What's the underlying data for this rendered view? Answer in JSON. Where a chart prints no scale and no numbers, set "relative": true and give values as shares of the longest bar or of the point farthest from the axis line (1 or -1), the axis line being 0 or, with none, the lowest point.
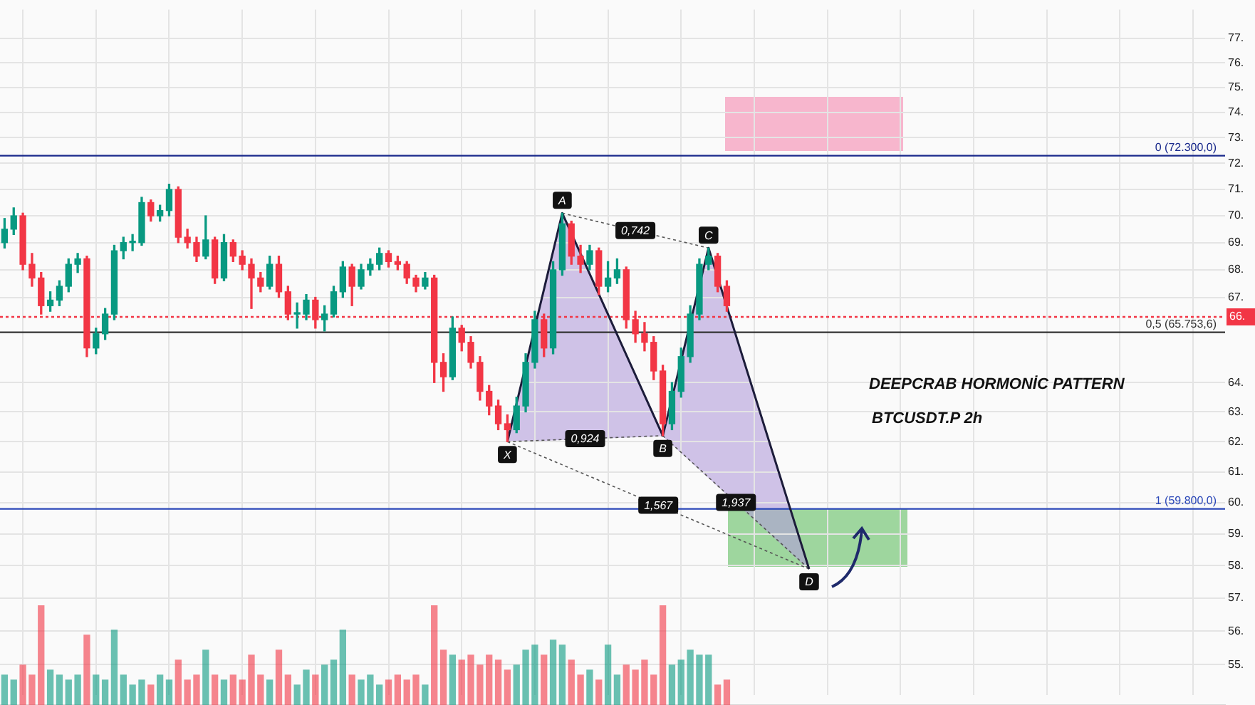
{
  "chart_data": [
    {
      "type": "candlestick",
      "title": "DEEPCRAB HORMONİC PATTERN",
      "subtitle": "BTCUSDT.P 2h",
      "categories": [
        null,
        null,
        null,
        null,
        null,
        null,
        null,
        null,
        null,
        null,
        null,
        null,
        null,
        null,
        null,
        null,
        null,
        null,
        null,
        null,
        null,
        null,
        null,
        null,
        null,
        null,
        null,
        null,
        null,
        null,
        null,
        null,
        null,
        null,
        null,
        null,
        null,
        null,
        null,
        null,
        null,
        null,
        null,
        null,
        null,
        null,
        null,
        null,
        null,
        null,
        null,
        null,
        null,
        null,
        null,
        null,
        null,
        null,
        null,
        null,
        null,
        null,
        null,
        null,
        null,
        null,
        null,
        null,
        null,
        null,
        null,
        null,
        null,
        null,
        null,
        null,
        null,
        null,
        null,
        null,
        null,
        null,
        null,
        null,
        null,
        null,
        null,
        null,
        null,
        null,
        null,
        null,
        null,
        null,
        null,
        null,
        null,
        null,
        null,
        null,
        null,
        null,
        null,
        null,
        null,
        null,
        null,
        null,
        null,
        null,
        null,
        null,
        null,
        null,
        null,
        null,
        null,
        null,
        null,
        null,
        null,
        null,
        null,
        null,
        null,
        null,
        null,
        null,
        null,
        null,
        null,
        null,
        null,
        null
      ],
      "ohlc": [
        [
          69.0,
          69.9,
          68.8,
          69.5
        ],
        [
          69.5,
          70.3,
          69.3,
          70.0
        ],
        [
          70.0,
          70.1,
          68.0,
          68.2
        ],
        [
          68.2,
          68.6,
          67.4,
          67.7
        ],
        [
          67.7,
          67.9,
          66.4,
          66.7
        ],
        [
          66.7,
          67.2,
          66.5,
          66.9
        ],
        [
          66.9,
          67.6,
          66.7,
          67.4
        ],
        [
          67.4,
          68.4,
          67.2,
          68.2
        ],
        [
          68.2,
          68.6,
          67.9,
          68.4
        ],
        [
          68.4,
          68.5,
          64.9,
          65.2
        ],
        [
          65.2,
          65.9,
          65.0,
          65.7
        ],
        [
          65.7,
          66.6,
          65.5,
          66.4
        ],
        [
          66.4,
          68.9,
          66.2,
          68.7
        ],
        [
          68.7,
          69.2,
          68.4,
          69.0
        ],
        [
          69.0,
          69.3,
          68.7,
          69.0
        ],
        [
          69.0,
          70.7,
          68.9,
          70.5
        ],
        [
          70.5,
          70.6,
          69.8,
          70.0
        ],
        [
          70.0,
          70.4,
          69.8,
          70.2
        ],
        [
          70.2,
          71.2,
          70.0,
          71.0
        ],
        [
          71.0,
          71.1,
          69.0,
          69.2
        ],
        [
          69.2,
          69.5,
          68.8,
          69.0
        ],
        [
          69.0,
          69.2,
          68.3,
          68.5
        ],
        [
          68.5,
          70.0,
          68.4,
          69.1
        ],
        [
          69.1,
          69.2,
          67.5,
          67.7
        ],
        [
          67.7,
          69.3,
          67.6,
          69.0
        ],
        [
          69.0,
          69.1,
          68.3,
          68.5
        ],
        [
          68.5,
          68.7,
          68.0,
          68.2
        ],
        [
          68.2,
          68.4,
          66.6,
          67.7
        ],
        [
          67.7,
          67.9,
          67.2,
          67.4
        ],
        [
          67.4,
          68.5,
          67.3,
          68.2
        ],
        [
          68.2,
          68.5,
          67.0,
          67.2
        ],
        [
          67.2,
          67.4,
          66.2,
          66.4
        ],
        [
          66.4,
          66.8,
          65.9,
          66.4
        ],
        [
          66.4,
          67.1,
          66.2,
          66.9
        ],
        [
          66.9,
          67.0,
          65.9,
          66.2
        ],
        [
          66.2,
          66.7,
          65.8,
          66.4
        ],
        [
          66.4,
          67.4,
          66.3,
          67.2
        ],
        [
          67.2,
          68.3,
          67.0,
          68.1
        ],
        [
          68.1,
          68.2,
          66.7,
          67.4
        ],
        [
          67.4,
          68.2,
          67.3,
          68.0
        ],
        [
          68.0,
          68.4,
          67.8,
          68.2
        ],
        [
          68.2,
          68.8,
          68.0,
          68.6
        ],
        [
          68.6,
          68.7,
          68.1,
          68.3
        ],
        [
          68.3,
          68.5,
          68.0,
          68.2
        ],
        [
          68.2,
          68.3,
          67.5,
          67.7
        ],
        [
          67.7,
          67.8,
          67.2,
          67.4
        ],
        [
          67.4,
          67.9,
          67.3,
          67.7
        ],
        [
          67.7,
          67.8,
          64.0,
          64.7
        ],
        [
          64.7,
          65.0,
          63.7,
          64.2
        ],
        [
          64.2,
          66.3,
          64.1,
          65.9
        ],
        [
          65.9,
          66.0,
          65.1,
          65.4
        ],
        [
          65.4,
          65.6,
          64.5,
          64.7
        ],
        [
          64.7,
          64.9,
          63.4,
          63.7
        ],
        [
          63.7,
          63.9,
          62.9,
          63.2
        ],
        [
          63.2,
          63.4,
          62.4,
          62.6
        ],
        [
          62.6,
          62.9,
          62.0,
          62.4
        ],
        [
          62.4,
          63.5,
          62.3,
          63.2
        ],
        [
          63.2,
          65.0,
          63.0,
          64.7
        ],
        [
          64.7,
          66.5,
          64.5,
          66.2
        ],
        [
          66.2,
          66.4,
          64.9,
          65.2
        ],
        [
          65.2,
          68.3,
          65.0,
          68.0
        ],
        [
          68.0,
          70.1,
          67.8,
          69.7
        ],
        [
          69.7,
          69.8,
          68.2,
          68.5
        ],
        [
          68.5,
          68.9,
          67.9,
          68.2
        ],
        [
          68.2,
          68.9,
          68.0,
          68.7
        ],
        [
          68.7,
          68.8,
          67.1,
          67.4
        ],
        [
          67.4,
          68.3,
          67.2,
          67.7
        ],
        [
          67.7,
          68.4,
          67.5,
          68.0
        ],
        [
          68.0,
          68.1,
          65.9,
          66.2
        ],
        [
          66.2,
          66.5,
          65.4,
          65.7
        ],
        [
          65.7,
          66.1,
          65.1,
          65.4
        ],
        [
          65.4,
          65.6,
          64.1,
          64.4
        ],
        [
          64.4,
          64.6,
          62.2,
          62.6
        ],
        [
          62.6,
          64.0,
          62.4,
          63.7
        ],
        [
          63.7,
          65.2,
          63.5,
          64.9
        ],
        [
          64.9,
          66.7,
          64.7,
          66.4
        ],
        [
          66.4,
          68.4,
          66.2,
          68.2
        ],
        [
          68.2,
          68.8,
          68.0,
          68.5
        ],
        [
          68.5,
          68.6,
          67.2,
          67.4
        ],
        [
          67.4,
          67.6,
          66.5,
          66.7
        ],
        null,
        null,
        null,
        null,
        null,
        null,
        null,
        null,
        null,
        null,
        null,
        null,
        null,
        null,
        null,
        null,
        null,
        null,
        null,
        null,
        null,
        null,
        null,
        null,
        null,
        null,
        null,
        null,
        null,
        null,
        null,
        null,
        null,
        null,
        null,
        null,
        null,
        null,
        null,
        null,
        null,
        null,
        null,
        null,
        null,
        null,
        null,
        null,
        null,
        null,
        null,
        null,
        null,
        null
      ],
      "colors": [
        "#089981",
        "#089981",
        "#f23645",
        "#f23645",
        "#f23645",
        "#089981",
        "#089981",
        "#089981",
        "#089981",
        "#f23645",
        "#089981",
        "#089981",
        "#089981",
        "#089981",
        "#089981",
        "#089981",
        "#f23645",
        "#089981",
        "#089981",
        "#f23645",
        "#f23645",
        "#f23645",
        "#089981",
        "#f23645",
        "#089981",
        "#f23645",
        "#f23645",
        "#f23645",
        "#f23645",
        "#089981",
        "#f23645",
        "#f23645",
        "#089981",
        "#089981",
        "#f23645",
        "#089981",
        "#089981",
        "#089981",
        "#f23645",
        "#089981",
        "#089981",
        "#089981",
        "#f23645",
        "#f23645",
        "#f23645",
        "#f23645",
        "#089981",
        "#f23645",
        "#f23645",
        "#089981",
        "#f23645",
        "#f23645",
        "#f23645",
        "#f23645",
        "#f23645",
        "#f23645",
        "#089981",
        "#089981",
        "#089981",
        "#f23645",
        "#089981",
        "#089981",
        "#f23645",
        "#f23645",
        "#089981",
        "#f23645",
        "#089981",
        "#089981",
        "#f23645",
        "#f23645",
        "#f23645",
        "#f23645",
        "#f23645",
        "#089981",
        "#089981",
        "#089981",
        "#089981",
        "#089981",
        "#f23645",
        "#f23645",
        null,
        null,
        null,
        null,
        null,
        null,
        null,
        null,
        null,
        null,
        null,
        null,
        null,
        null,
        null,
        null,
        null,
        null,
        null,
        null,
        null,
        null,
        null,
        null,
        null,
        null,
        null,
        null,
        null,
        null,
        null,
        null,
        null,
        null,
        null,
        null,
        null,
        null,
        null,
        null,
        null,
        null,
        null,
        null,
        null,
        null,
        null,
        null,
        null,
        null,
        null,
        null,
        null,
        null
      ],
      "series": [
        {
          "type": "line",
          "color": "#1c1c3a",
          "values": [
            null,
            null,
            null,
            null,
            null,
            null,
            null,
            null,
            null,
            null,
            null,
            null,
            null,
            null,
            null,
            null,
            null,
            null,
            null,
            null,
            null,
            null,
            null,
            null,
            null,
            null,
            null,
            null,
            null,
            null,
            null,
            null,
            null,
            null,
            null,
            null,
            null,
            null,
            null,
            null,
            null,
            null,
            null,
            null,
            null,
            null,
            null,
            null,
            null,
            null,
            null,
            null,
            null,
            null,
            null,
            62.0,
            null,
            null,
            null,
            null,
            null,
            70.1,
            null,
            null,
            null,
            null,
            null,
            null,
            null,
            null,
            null,
            null,
            62.2,
            null,
            null,
            null,
            null,
            68.8,
            null,
            null,
            null,
            null,
            null,
            null,
            null,
            null,
            null,
            null,
            57.9,
            null,
            null,
            null,
            null,
            null,
            null,
            null,
            null,
            null,
            null,
            null,
            null,
            null,
            null,
            null,
            null,
            null,
            null,
            null,
            null,
            null,
            null,
            null,
            null,
            null,
            null,
            null,
            null,
            null,
            null,
            null,
            null,
            null,
            null,
            null,
            null,
            null,
            null,
            null,
            null,
            null,
            null,
            null,
            null,
            null
          ]
        }
      ],
      "ylim": [
        54.1,
        78.2
      ],
      "yticks": [
        {
          "value": 55,
          "label": "55."
        },
        {
          "value": 56,
          "label": "56."
        },
        {
          "value": 57,
          "label": "57."
        },
        {
          "value": 58,
          "label": "58."
        },
        {
          "value": 59,
          "label": "59."
        },
        {
          "value": 60,
          "label": "60."
        },
        {
          "value": 61,
          "label": "61."
        },
        {
          "value": 62,
          "label": "62."
        },
        {
          "value": 63,
          "label": "63."
        },
        {
          "value": 64,
          "label": "64."
        },
        {
          "value": 67,
          "label": "67."
        },
        {
          "value": 68,
          "label": "68."
        },
        {
          "value": 69,
          "label": "69."
        },
        {
          "value": 70,
          "label": "70."
        },
        {
          "value": 71,
          "label": "71."
        },
        {
          "value": 72,
          "label": "72."
        },
        {
          "value": 73,
          "label": "73."
        },
        {
          "value": 74,
          "label": "74."
        },
        {
          "value": 75,
          "label": "75."
        },
        {
          "value": 76,
          "label": "76."
        },
        {
          "value": 77,
          "label": "77."
        }
      ],
      "log": true,
      "grid": true,
      "tick_labels": "y",
      "ref_lines": [
        {
          "axis": "y",
          "value": 72.3,
          "label": "0 (72.300,0)",
          "color": "#1a2a8c"
        },
        {
          "axis": "y",
          "value": 65.7536,
          "label": "0,5 (65.753,6)",
          "color": "#333333"
        },
        {
          "axis": "y",
          "value": 59.8,
          "label": "1 (59.800,0)",
          "color": "#2a47b8"
        },
        {
          "axis": "y",
          "value": 66.3,
          "label": "66.",
          "color": "#f23645",
          "line_style": "dotted"
        }
      ],
      "annotations": [
        {
          "text": "X",
          "y": 62.0
        },
        {
          "text": "A",
          "y": 70.1
        },
        {
          "text": "B",
          "y": 62.2
        },
        {
          "text": "C",
          "y": 68.8
        },
        {
          "text": "D",
          "y": 57.9
        },
        "0,742",
        "0,924",
        "1,567",
        "1,937"
      ]
    },
    {
      "type": "bar",
      "relative": true,
      "tick_labels": false,
      "categories": [
        null,
        null,
        null,
        null,
        null,
        null,
        null,
        null,
        null,
        null,
        null,
        null,
        null,
        null,
        null,
        null,
        null,
        null,
        null,
        null,
        null,
        null,
        null,
        null,
        null,
        null,
        null,
        null,
        null,
        null,
        null,
        null,
        null,
        null,
        null,
        null,
        null,
        null,
        null,
        null,
        null,
        null,
        null,
        null,
        null,
        null,
        null,
        null,
        null,
        null,
        null,
        null,
        null,
        null,
        null,
        null,
        null,
        null,
        null,
        null,
        null,
        null,
        null,
        null,
        null,
        null,
        null,
        null,
        null,
        null,
        null,
        null,
        null,
        null,
        null,
        null,
        null,
        null,
        null,
        null,
        null,
        null,
        null,
        null,
        null,
        null,
        null,
        null,
        null,
        null,
        null,
        null,
        null,
        null,
        null,
        null,
        null,
        null,
        null,
        null,
        null,
        null,
        null,
        null,
        null,
        null,
        null,
        null,
        null,
        null,
        null,
        null,
        null,
        null,
        null,
        null,
        null,
        null,
        null,
        null,
        null,
        null,
        null,
        null,
        null,
        null,
        null,
        null,
        null,
        null,
        null,
        null,
        null,
        null
      ],
      "colors": [
        "#089981",
        "#089981",
        "#f23645",
        "#f23645",
        "#f23645",
        "#089981",
        "#089981",
        "#089981",
        "#089981",
        "#f23645",
        "#089981",
        "#089981",
        "#089981",
        "#089981",
        "#089981",
        "#089981",
        "#f23645",
        "#089981",
        "#089981",
        "#f23645",
        "#f23645",
        "#f23645",
        "#089981",
        "#f23645",
        "#089981",
        "#f23645",
        "#f23645",
        "#f23645",
        "#f23645",
        "#089981",
        "#f23645",
        "#f23645",
        "#089981",
        "#089981",
        "#f23645",
        "#089981",
        "#089981",
        "#089981",
        "#f23645",
        "#089981",
        "#089981",
        "#089981",
        "#f23645",
        "#f23645",
        "#f23645",
        "#f23645",
        "#089981",
        "#f23645",
        "#f23645",
        "#089981",
        "#f23645",
        "#f23645",
        "#f23645",
        "#f23645",
        "#f23645",
        "#f23645",
        "#089981",
        "#089981",
        "#089981",
        "#f23645",
        "#089981",
        "#089981",
        "#f23645",
        "#f23645",
        "#089981",
        "#f23645",
        "#089981",
        "#089981",
        "#f23645",
        "#f23645",
        "#f23645",
        "#f23645",
        "#f23645",
        "#089981",
        "#089981",
        "#089981",
        "#089981",
        "#089981",
        "#f23645",
        "#f23645",
        null,
        null,
        null,
        null,
        null,
        null,
        null,
        null,
        null,
        null,
        null,
        null,
        null,
        null,
        null,
        null,
        null,
        null,
        null,
        null,
        null,
        null,
        null,
        null,
        null,
        null,
        null,
        null,
        null,
        null,
        null,
        null,
        null,
        null,
        null,
        null,
        null,
        null,
        null,
        null,
        null,
        null,
        null,
        null,
        null,
        null,
        null,
        null,
        null,
        null,
        null,
        null,
        null,
        null
      ],
      "values": [
        0.3,
        0.25,
        0.4,
        0.3,
        1.0,
        0.35,
        0.3,
        0.25,
        0.3,
        0.7,
        0.3,
        0.25,
        0.75,
        0.3,
        0.2,
        0.25,
        0.2,
        0.3,
        0.25,
        0.45,
        0.25,
        0.3,
        0.55,
        0.3,
        0.25,
        0.3,
        0.25,
        0.5,
        0.3,
        0.25,
        0.55,
        0.3,
        0.2,
        0.35,
        0.3,
        0.4,
        0.45,
        0.75,
        0.3,
        0.25,
        0.3,
        0.2,
        0.25,
        0.3,
        0.25,
        0.3,
        0.2,
        1.0,
        0.55,
        0.5,
        0.45,
        0.5,
        0.4,
        0.5,
        0.45,
        0.35,
        0.4,
        0.55,
        0.6,
        0.5,
        0.65,
        0.6,
        0.45,
        0.3,
        0.35,
        0.25,
        0.6,
        0.3,
        0.4,
        0.35,
        0.45,
        0.3,
        1.0,
        0.4,
        0.45,
        0.55,
        0.5,
        0.5,
        0.2,
        0.25,
        null,
        null,
        null,
        null,
        null,
        null,
        null,
        null,
        null,
        null,
        null,
        null,
        null,
        null,
        null,
        null,
        null,
        null,
        null,
        null,
        null,
        null,
        null,
        null,
        null,
        null,
        null,
        null,
        null,
        null,
        null,
        null,
        null,
        null,
        null,
        null,
        null,
        null,
        null,
        null,
        null,
        null,
        null,
        null,
        null,
        null,
        null,
        null,
        null,
        null,
        null,
        null,
        null,
        null
      ]
    }
  ]
}
